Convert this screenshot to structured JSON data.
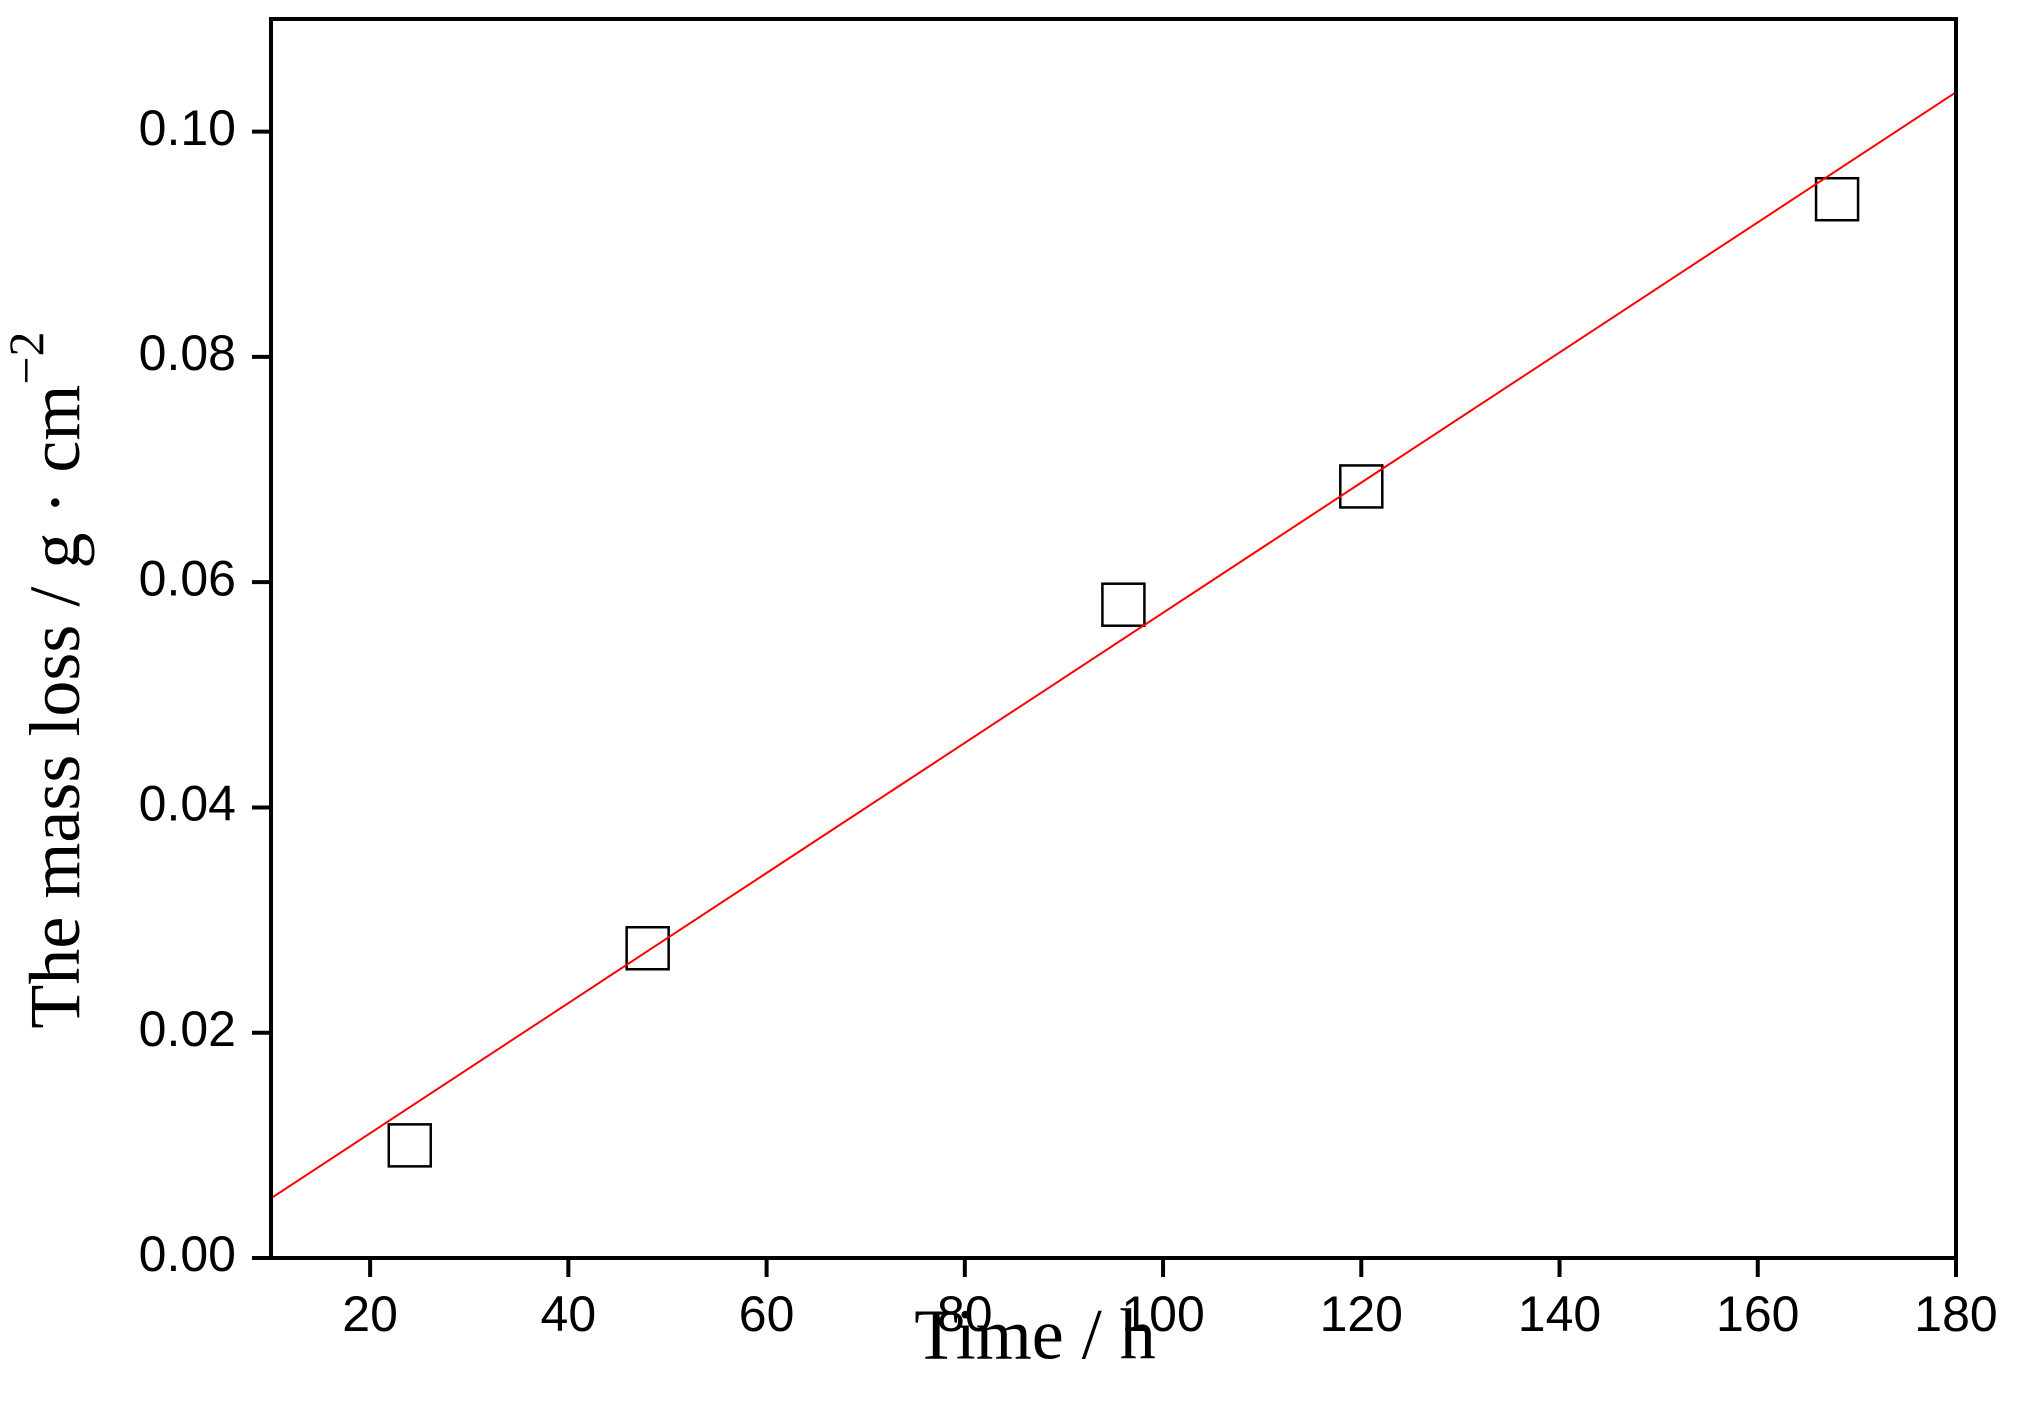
{
  "chart_data": {
    "type": "scatter",
    "x_label": "Time / h",
    "y_label": "The mass loss / g · cm",
    "y_label_superscript": "−2",
    "series": [
      {
        "type": "scatter",
        "color": "#000000",
        "x": [
          24,
          48,
          96,
          120,
          168
        ],
        "values": [
          0.01,
          0.0275,
          0.058,
          0.0685,
          0.094
        ]
      },
      {
        "type": "line",
        "color": "#ff0000",
        "x": [
          10,
          180
        ],
        "values": [
          0.0053,
          0.1035
        ]
      }
    ],
    "xlim": [
      10,
      180
    ],
    "xticks": [
      20,
      40,
      60,
      80,
      100,
      120,
      140,
      160,
      180
    ],
    "ylim": [
      0,
      0.11
    ],
    "yticks": [
      {
        "value": 0,
        "label": "0.00"
      },
      0.02,
      0.04,
      0.06,
      0.08,
      {
        "value": 0.1,
        "label": "0.10"
      }
    ]
  }
}
